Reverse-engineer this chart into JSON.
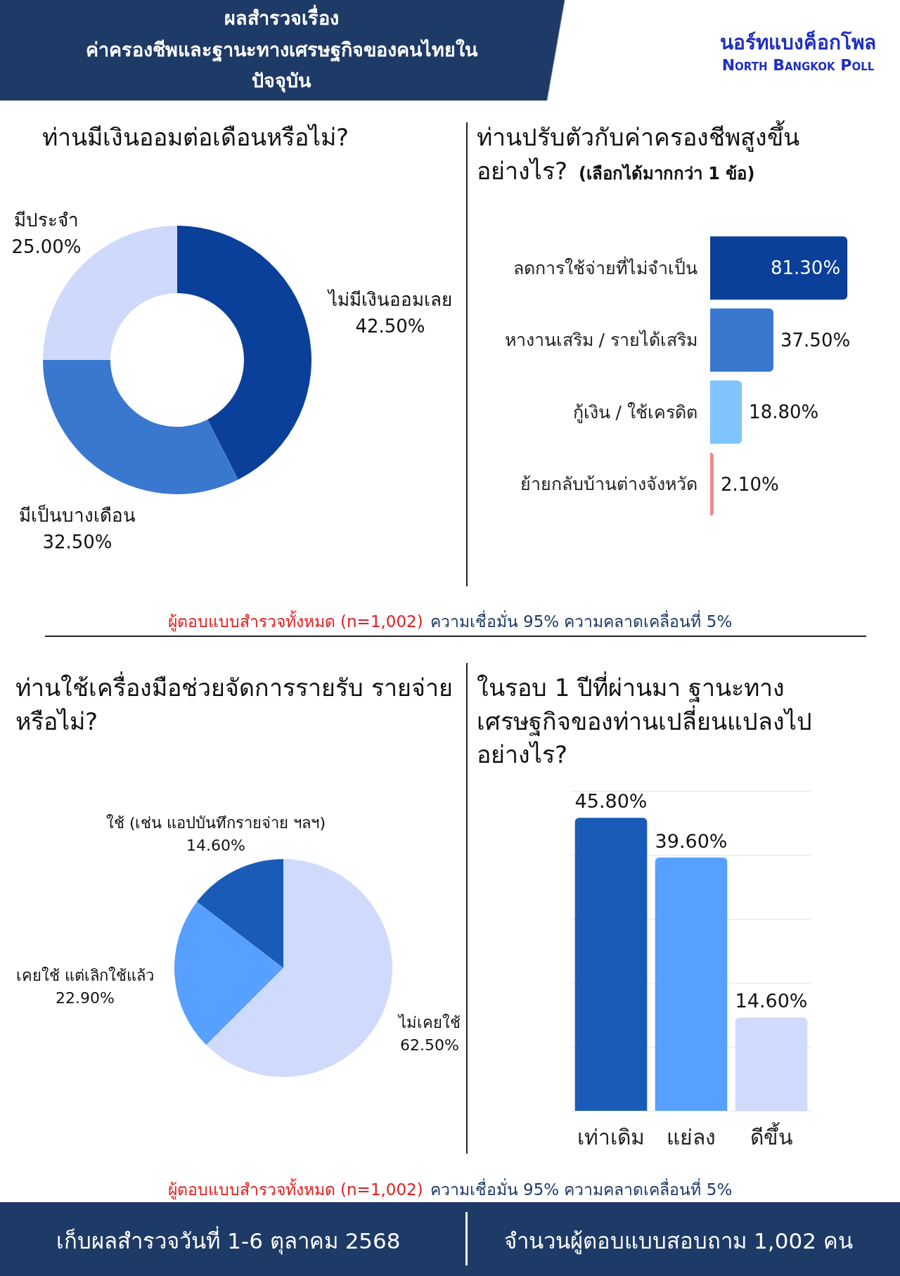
{
  "chart_data": [
    {
      "type": "other",
      "title": "ผลสำรวจเรื่อง\nค่าครองชีพและฐานะทางเศรษฐกิจของคนไทยใน\nปัจจุบัน",
      "annotations": [
        "นอร์ทแบงค็อกโพล",
        "North Bangkok Poll"
      ]
    },
    {
      "type": "donut",
      "title": "ท่านมีเงินออมต่อเดือนหรือไม่?",
      "categories": [
        "ไม่มีเงินออมเลย",
        "มีเป็นบางเดือน",
        "มีประจำ"
      ],
      "values": [
        42.5,
        32.5,
        25.0
      ],
      "value_labels": [
        "42.50%",
        "32.50%",
        "25.00%"
      ],
      "colors": [
        "#0a3f9a",
        "#3a78d0",
        "#cfd9fb"
      ],
      "annotations": [
        "ผู้ตอบแบบสำรวจทั้งหมด (n=1,002)",
        "ความเชื่อมั่น 95% ความคลาดเคลื่อนที่ 5%"
      ]
    },
    {
      "type": "bar",
      "orientation": "horizontal",
      "title": "ท่านปรับตัวกับค่าครองชีพสูงขึ้น อย่างไร?",
      "subtitle": "(เลือกได้มากกว่า 1 ข้อ)",
      "categories": [
        "ลดการใช้จ่ายที่ไม่จำเป็น",
        "หางานเสริม / รายได้เสริม",
        "กู้เงิน / ใช้เครดิต",
        "ย้ายกลับบ้านต่างจังหวัด"
      ],
      "values": [
        81.3,
        37.5,
        18.8,
        2.1
      ],
      "value_labels": [
        "81.30%",
        "37.50%",
        "18.80%",
        "2.10%"
      ],
      "colors": [
        "#0a3f9a",
        "#3a78d0",
        "#7fc4ff",
        "#f08a8a"
      ],
      "tick_labels": false
    },
    {
      "type": "pie",
      "title": "ท่านใช้เครื่องมือช่วยจัดการรายรับ รายจ่ายหรือไม่?",
      "categories": [
        "ใช้ (เช่น แอปบันทึกรายจ่าย ฯลฯ)",
        "เคยใช้ แต่เลิกใช้แล้ว",
        "ไม่เคยใช้"
      ],
      "values": [
        14.6,
        22.9,
        62.5
      ],
      "value_labels": [
        "14.60%",
        "22.90%",
        "62.50%"
      ],
      "colors": [
        "#1a5bb8",
        "#58a0ff",
        "#d0dafc"
      ],
      "annotations": [
        "ผู้ตอบแบบสำรวจทั้งหมด (n=1,002)",
        "ความเชื่อมั่น 95% ความคลาดเคลื่อนที่ 5%"
      ]
    },
    {
      "type": "bar",
      "title": "ในรอบ 1 ปีที่ผ่านมา ฐานะทาง เศรษฐกิจของท่านเปลี่ยนแปลงไป อย่างไร?",
      "categories": [
        "เท่าเดิม",
        "แย่ลง",
        "ดีขึ้น"
      ],
      "values": [
        45.8,
        39.6,
        14.6
      ],
      "value_labels": [
        "45.80%",
        "39.60%",
        "14.60%"
      ],
      "colors": [
        "#1a5bb8",
        "#58a0ff",
        "#d0dafc"
      ],
      "ylim": [
        0,
        50
      ],
      "yticks": [
        {
          "value": 0,
          "label": null
        },
        {
          "value": 10,
          "label": null
        },
        {
          "value": 20,
          "label": null
        },
        {
          "value": 30,
          "label": null
        },
        {
          "value": 40,
          "label": null
        },
        {
          "value": 50,
          "label": null
        }
      ],
      "grid": "y",
      "tick_labels": "x"
    },
    {
      "type": "other",
      "annotations": [
        "เก็บผลสำรวจวันที่ 1-6 ตุลาคม 2568",
        "จำนวนผู้ตอบแบบสอบถาม 1,002 คน"
      ]
    }
  ]
}
